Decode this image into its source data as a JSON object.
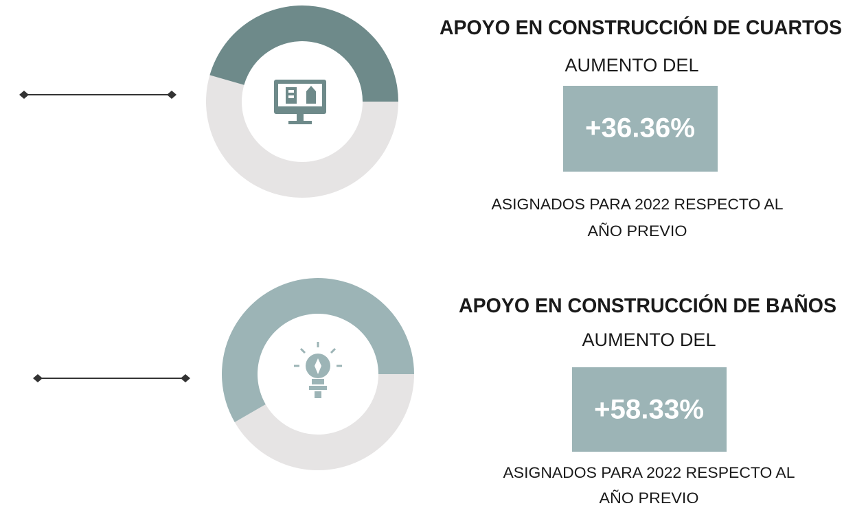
{
  "sections": [
    {
      "title": "APOYO EN CONSTRUCCIÓN DE CUARTOS",
      "lead": "AUMENTO DEL",
      "value": "+36.36%",
      "note": [
        "ASIGNADOS PARA 2022 RESPECTO AL",
        "AÑO PREVIO"
      ]
    },
    {
      "title": "APOYO EN CONSTRUCCIÓN DE BAÑOS",
      "lead": "AUMENTO DEL",
      "value": "+58.33%",
      "note": [
        "ASIGNADOS PARA 2022 RESPECTO AL",
        "AÑO PREVIO"
      ]
    }
  ]
}
